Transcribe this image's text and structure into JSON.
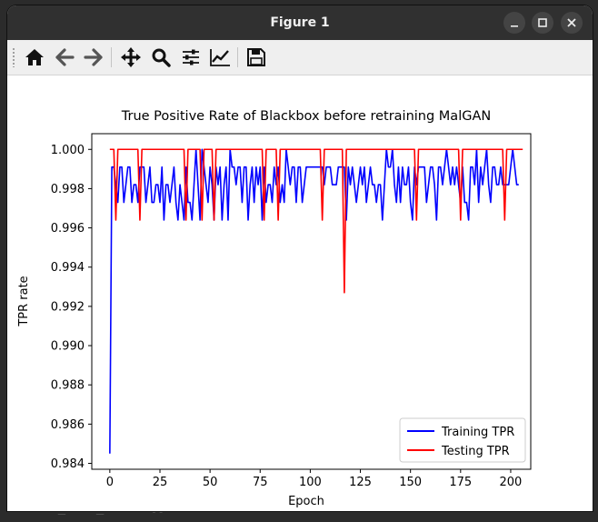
{
  "window": {
    "title": "Figure 1",
    "controls": {
      "minimize_icon": "minimize-icon",
      "maximize_icon": "maximize-icon",
      "close_icon": "close-icon"
    }
  },
  "toolbar": {
    "buttons": [
      {
        "name": "home-button",
        "icon": "home-icon"
      },
      {
        "name": "back-button",
        "icon": "arrow-left-icon"
      },
      {
        "name": "forward-button",
        "icon": "arrow-right-icon"
      },
      {
        "name": "pan-button",
        "icon": "move-icon"
      },
      {
        "name": "zoom-button",
        "icon": "magnifier-icon"
      },
      {
        "name": "subplots-button",
        "icon": "sliders-icon"
      },
      {
        "name": "edit-axis-button",
        "icon": "line-chart-icon"
      },
      {
        "name": "save-button",
        "icon": "floppy-disk-icon"
      }
    ]
  },
  "background_code": {
    "bottom_line": "POST_TEST_TPR = []"
  },
  "chart_data": {
    "type": "line",
    "title": "True Positive Rate of Blackbox before retraining MalGAN",
    "xlabel": "Epoch",
    "ylabel": "TPR rate",
    "xlim": [
      -9,
      210
    ],
    "ylim": [
      0.9837,
      1.0008
    ],
    "xticks": [
      0,
      25,
      50,
      75,
      100,
      125,
      150,
      175,
      200
    ],
    "yticks": [
      0.984,
      0.986,
      0.988,
      0.99,
      0.992,
      0.994,
      0.996,
      0.998,
      1.0
    ],
    "ytick_labels": [
      "0.984",
      "0.986",
      "0.988",
      "0.990",
      "0.992",
      "0.994",
      "0.996",
      "0.998",
      "1.000"
    ],
    "grid": false,
    "legend_position": "lower-right",
    "series": [
      {
        "name": "Training TPR",
        "color": "#0000ff",
        "x_start": 0,
        "values": [
          0.9845,
          0.9991,
          0.9991,
          0.9982,
          0.9973,
          0.9991,
          0.9991,
          0.9973,
          0.9982,
          0.9991,
          0.9991,
          0.9973,
          0.9982,
          0.9982,
          0.9973,
          0.9991,
          0.9991,
          0.9991,
          0.9973,
          0.9982,
          0.9991,
          0.9973,
          0.9973,
          0.9982,
          0.9982,
          0.9973,
          0.9991,
          0.9964,
          0.9982,
          0.9982,
          0.9973,
          0.9982,
          0.9991,
          0.9973,
          0.9964,
          0.9982,
          0.9973,
          0.9964,
          0.9991,
          0.9973,
          0.9973,
          0.9964,
          0.9982,
          1.0,
          0.9982,
          0.9964,
          1.0,
          0.9991,
          0.9982,
          0.9973,
          0.9991,
          0.9982,
          0.9964,
          0.9991,
          0.9982,
          0.9991,
          0.9964,
          0.9982,
          0.9991,
          0.9964,
          1.0,
          0.9991,
          0.9991,
          0.9982,
          0.9991,
          0.9991,
          0.9973,
          0.9991,
          0.9991,
          0.9964,
          0.9982,
          0.9991,
          0.9973,
          0.9991,
          0.9982,
          0.9991,
          0.9964,
          0.9991,
          0.9973,
          0.9982,
          0.9982,
          0.9973,
          0.9991,
          0.9982,
          0.9991,
          0.9973,
          0.9982,
          0.9973,
          1.0,
          0.9991,
          0.9982,
          0.9991,
          0.9991,
          0.9973,
          0.9991,
          0.9991,
          0.9973,
          0.9982,
          0.9991,
          0.9991,
          0.9991,
          0.9991,
          0.9991,
          0.9991,
          0.9991,
          0.9991,
          0.9991,
          0.9982,
          0.9991,
          0.9991,
          0.9991,
          0.9982,
          0.9982,
          0.9982,
          0.9991,
          0.9991,
          0.9991,
          0.9991,
          0.9964,
          0.9991,
          0.9982,
          0.9991,
          0.9982,
          0.9973,
          0.9982,
          0.9991,
          0.9982,
          0.9991,
          0.9973,
          0.9982,
          0.9991,
          0.9982,
          0.9982,
          0.9973,
          0.9982,
          0.9982,
          0.9964,
          0.9982,
          1.0,
          0.9991,
          0.9991,
          1.0,
          0.9982,
          0.9973,
          0.9991,
          0.9973,
          0.9991,
          0.9982,
          0.9982,
          0.9991,
          0.9973,
          0.9964,
          0.9991,
          0.9982,
          0.9991,
          0.9991,
          0.9991,
          0.9991,
          0.9973,
          0.9982,
          0.9991,
          0.9991,
          0.9982,
          0.9964,
          0.9991,
          0.9991,
          0.9982,
          0.9991,
          1.0,
          0.9991,
          0.9982,
          0.9991,
          0.9982,
          0.9991,
          0.9982,
          0.9973,
          0.9991,
          0.9973,
          0.9973,
          0.9964,
          0.9991,
          0.9991,
          0.9982,
          1.0,
          0.9973,
          0.9991,
          0.9982,
          0.9991,
          1.0,
          0.9982,
          0.9973,
          0.9991,
          0.9991,
          0.9982,
          0.9982,
          0.9991,
          0.9982,
          0.9982,
          0.9982,
          0.9982,
          0.9991,
          1.0,
          0.9991,
          0.9982,
          0.9982
        ]
      },
      {
        "name": "Testing TPR",
        "color": "#ff0000",
        "x_start": 0,
        "values": [
          1.0,
          1.0,
          1.0,
          0.9964,
          1.0,
          1.0,
          1.0,
          1.0,
          1.0,
          1.0,
          1.0,
          1.0,
          1.0,
          1.0,
          1.0,
          0.9964,
          1.0,
          1.0,
          1.0,
          1.0,
          1.0,
          1.0,
          1.0,
          1.0,
          1.0,
          1.0,
          1.0,
          1.0,
          1.0,
          1.0,
          1.0,
          1.0,
          1.0,
          1.0,
          1.0,
          1.0,
          1.0,
          1.0,
          0.9964,
          1.0,
          1.0,
          1.0,
          1.0,
          1.0,
          1.0,
          1.0,
          0.9964,
          1.0,
          1.0,
          1.0,
          1.0,
          1.0,
          0.9964,
          1.0,
          1.0,
          1.0,
          1.0,
          1.0,
          1.0,
          1.0,
          1.0,
          1.0,
          1.0,
          1.0,
          1.0,
          1.0,
          1.0,
          1.0,
          1.0,
          1.0,
          1.0,
          1.0,
          1.0,
          1.0,
          1.0,
          1.0,
          1.0,
          0.9964,
          1.0,
          1.0,
          1.0,
          1.0,
          1.0,
          1.0,
          0.9964,
          1.0,
          1.0,
          1.0,
          1.0,
          1.0,
          1.0,
          1.0,
          1.0,
          1.0,
          1.0,
          1.0,
          1.0,
          1.0,
          1.0,
          1.0,
          1.0,
          1.0,
          1.0,
          1.0,
          1.0,
          1.0,
          0.9964,
          1.0,
          1.0,
          1.0,
          1.0,
          1.0,
          1.0,
          1.0,
          1.0,
          1.0,
          1.0,
          0.9927,
          1.0,
          1.0,
          1.0,
          1.0,
          1.0,
          1.0,
          1.0,
          1.0,
          1.0,
          1.0,
          1.0,
          1.0,
          1.0,
          1.0,
          1.0,
          1.0,
          1.0,
          1.0,
          1.0,
          1.0,
          1.0,
          1.0,
          1.0,
          1.0,
          1.0,
          1.0,
          1.0,
          1.0,
          1.0,
          1.0,
          1.0,
          1.0,
          1.0,
          1.0,
          1.0,
          0.9964,
          1.0,
          1.0,
          1.0,
          1.0,
          1.0,
          1.0,
          1.0,
          1.0,
          1.0,
          1.0,
          1.0,
          1.0,
          1.0,
          1.0,
          1.0,
          1.0,
          1.0,
          1.0,
          1.0,
          1.0,
          1.0,
          0.9964,
          1.0,
          1.0,
          1.0,
          1.0,
          1.0,
          1.0,
          1.0,
          1.0,
          1.0,
          1.0,
          1.0,
          1.0,
          1.0,
          1.0,
          1.0,
          1.0,
          1.0,
          1.0,
          1.0,
          1.0,
          1.0,
          0.9964,
          1.0,
          1.0,
          1.0,
          1.0,
          1.0,
          1.0,
          1.0,
          1.0,
          1.0
        ]
      }
    ]
  }
}
